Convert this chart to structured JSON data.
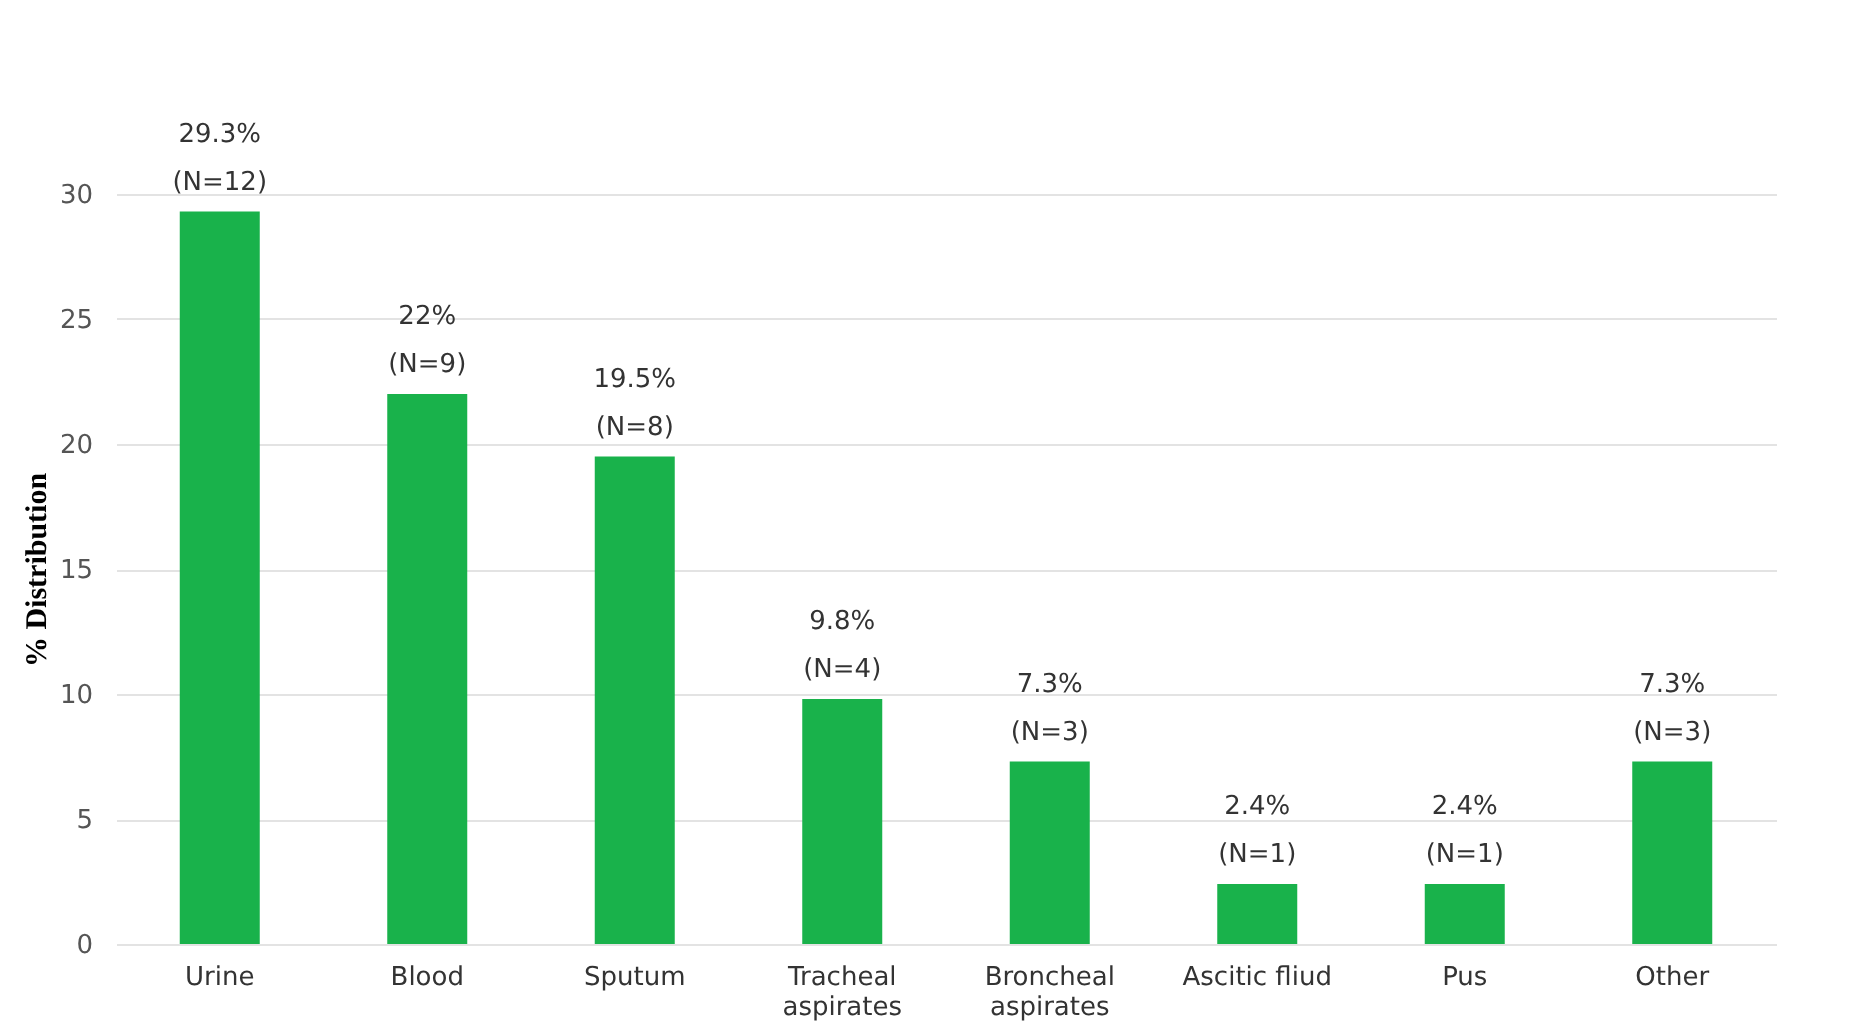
{
  "chart_data": {
    "type": "bar",
    "ylabel": "% Distribution",
    "categories": [
      "Urine",
      "Blood",
      "Sputum",
      "Tracheal aspirates",
      "Broncheal aspirates",
      "Ascitic fliud",
      "Pus",
      "Other"
    ],
    "values": [
      29.3,
      22,
      19.5,
      9.8,
      7.3,
      2.4,
      2.4,
      7.3
    ],
    "value_labels": [
      "29.3%\n(N=12)",
      "22%\n(N=9)",
      "19.5%\n(N=8)",
      "9.8%\n(N=4)",
      "7.3%\n(N=3)",
      "2.4%\n(N=1)",
      "2.4%\n(N=1)",
      "7.3%\n(N=3)"
    ],
    "color": "#19b24b",
    "ylim": [
      0,
      30
    ],
    "yticks": [
      0,
      5,
      10,
      15,
      20,
      25,
      30
    ],
    "grid": "y"
  }
}
